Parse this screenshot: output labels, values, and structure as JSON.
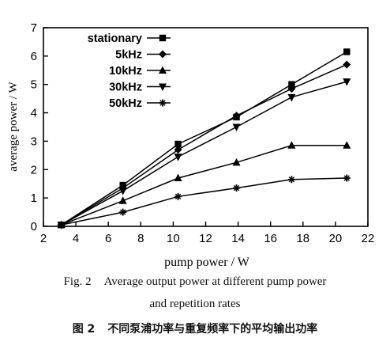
{
  "chart_data": {
    "type": "line",
    "xlabel": "pump power / W",
    "ylabel": "average power / W",
    "xlim": [
      2,
      22
    ],
    "ylim": [
      0,
      7
    ],
    "xticks": [
      2,
      4,
      6,
      8,
      10,
      12,
      14,
      16,
      18,
      20,
      22
    ],
    "yticks": [
      0,
      1,
      2,
      3,
      4,
      5,
      6,
      7
    ],
    "grid": false,
    "legend_position": "top-left",
    "series": [
      {
        "name": "stationary",
        "marker": "square",
        "x": [
          3.1,
          6.9,
          10.3,
          13.9,
          17.3,
          20.7
        ],
        "y": [
          0.05,
          1.45,
          2.9,
          3.85,
          5.0,
          6.15
        ]
      },
      {
        "name": "5kHz",
        "marker": "diamond",
        "x": [
          3.1,
          6.9,
          10.3,
          13.9,
          17.3,
          20.7
        ],
        "y": [
          0.05,
          1.35,
          2.7,
          3.9,
          4.85,
          5.7
        ]
      },
      {
        "name": "10kHz",
        "marker": "triangle-up",
        "x": [
          3.1,
          6.9,
          10.3,
          13.9,
          17.3,
          20.7
        ],
        "y": [
          0.05,
          0.9,
          1.7,
          2.25,
          2.85,
          2.85
        ]
      },
      {
        "name": "30kHz",
        "marker": "triangle-down",
        "x": [
          3.1,
          6.9,
          10.3,
          13.9,
          17.3,
          20.7
        ],
        "y": [
          0.05,
          1.25,
          2.45,
          3.5,
          4.55,
          5.1
        ]
      },
      {
        "name": "50kHz",
        "marker": "star",
        "x": [
          3.1,
          6.9,
          10.3,
          13.9,
          17.3,
          20.7
        ],
        "y": [
          0.05,
          0.5,
          1.05,
          1.35,
          1.65,
          1.7
        ]
      }
    ]
  },
  "captions": {
    "en_line1_label": "Fig. 2",
    "en_line1_text": "Average output power at different pump power",
    "en_line2": "and repetition rates",
    "cn_label": "图 2",
    "cn_text": "不同泵浦功率与重复频率下的平均输出功率"
  }
}
